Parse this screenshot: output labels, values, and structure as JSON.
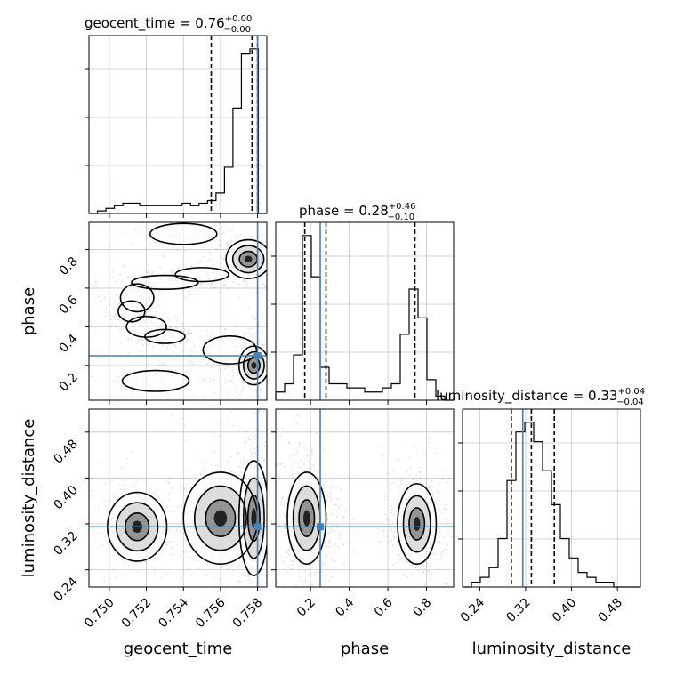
{
  "chart_data": {
    "type": "corner",
    "parameters": [
      {
        "name": "geocent_time",
        "title": "geocent_time = 0.76",
        "title_sup": "+0.00",
        "title_sub": "−0.00",
        "range": [
          0.7489,
          0.7585
        ],
        "ticks": [
          0.75,
          0.752,
          0.754,
          0.756,
          0.758
        ],
        "tick_labels": [
          "0.750",
          "0.752",
          "0.754",
          "0.756",
          "0.758"
        ],
        "truth": 0.758,
        "quantiles": [
          0.7555,
          0.7577,
          0.758
        ],
        "hist": [
          0,
          1,
          2,
          3,
          4,
          4,
          3,
          3,
          3,
          3,
          3,
          4,
          3,
          4,
          5,
          8,
          18,
          41,
          62,
          64,
          0
        ]
      },
      {
        "name": "phase",
        "title": "phase = 0.28",
        "title_sup": "+0.46",
        "title_sub": "−0.10",
        "range": [
          0.02,
          0.94
        ],
        "ticks": [
          0.2,
          0.4,
          0.6,
          0.8
        ],
        "tick_labels": [
          "0.2",
          "0.4",
          "0.6",
          "0.8"
        ],
        "truth": 0.25,
        "quantiles": [
          0.17,
          0.28,
          0.74
        ],
        "hist": [
          2,
          4,
          11,
          40,
          30,
          8,
          4,
          4,
          3,
          3,
          2,
          2,
          3,
          4,
          16,
          27,
          20,
          5,
          1,
          0
        ]
      },
      {
        "name": "luminosity_distance",
        "title": "luminosity_distance = 0.33",
        "title_sup": "+0.04",
        "title_sub": "−0.04",
        "range": [
          0.21,
          0.52
        ],
        "ticks": [
          0.24,
          0.32,
          0.4,
          0.48
        ],
        "tick_labels": [
          "0.24",
          "0.32",
          "0.40",
          "0.48"
        ],
        "truth": 0.315,
        "quantiles": [
          0.295,
          0.33,
          0.37
        ],
        "hist": [
          0,
          1,
          2,
          4,
          10,
          22,
          32,
          34,
          30,
          24,
          17,
          10,
          6,
          3,
          2,
          1,
          1,
          0,
          0,
          0
        ]
      }
    ],
    "clusters": {
      "time_phase": [
        {
          "x": 0.7512,
          "y": 0.48,
          "sx": 0.0004,
          "sy": 0.03,
          "n": 60
        },
        {
          "x": 0.752,
          "y": 0.4,
          "sx": 0.0006,
          "sy": 0.03,
          "n": 60
        },
        {
          "x": 0.753,
          "y": 0.35,
          "sx": 0.0006,
          "sy": 0.02,
          "n": 60
        },
        {
          "x": 0.7565,
          "y": 0.28,
          "sx": 0.0008,
          "sy": 0.04,
          "n": 120
        },
        {
          "x": 0.7578,
          "y": 0.2,
          "sx": 0.0004,
          "sy": 0.05,
          "n": 180
        },
        {
          "x": 0.7515,
          "y": 0.55,
          "sx": 0.0005,
          "sy": 0.04,
          "n": 60
        },
        {
          "x": 0.753,
          "y": 0.63,
          "sx": 0.001,
          "sy": 0.02,
          "n": 80
        },
        {
          "x": 0.755,
          "y": 0.67,
          "sx": 0.0008,
          "sy": 0.02,
          "n": 70
        },
        {
          "x": 0.7575,
          "y": 0.75,
          "sx": 0.0006,
          "sy": 0.05,
          "n": 180
        },
        {
          "x": 0.754,
          "y": 0.88,
          "sx": 0.001,
          "sy": 0.03,
          "n": 80
        },
        {
          "x": 0.7525,
          "y": 0.12,
          "sx": 0.001,
          "sy": 0.03,
          "n": 80
        }
      ],
      "time_dist": [
        {
          "x": 0.7515,
          "y": 0.315,
          "sx": 0.0008,
          "sy": 0.03,
          "n": 150
        },
        {
          "x": 0.756,
          "y": 0.33,
          "sx": 0.001,
          "sy": 0.04,
          "n": 200
        },
        {
          "x": 0.7578,
          "y": 0.33,
          "sx": 0.0004,
          "sy": 0.05,
          "n": 400
        }
      ],
      "phase_dist": [
        {
          "x": 0.18,
          "y": 0.33,
          "sx": 0.05,
          "sy": 0.04,
          "n": 400
        },
        {
          "x": 0.75,
          "y": 0.32,
          "sx": 0.05,
          "sy": 0.035,
          "n": 300
        }
      ]
    }
  }
}
